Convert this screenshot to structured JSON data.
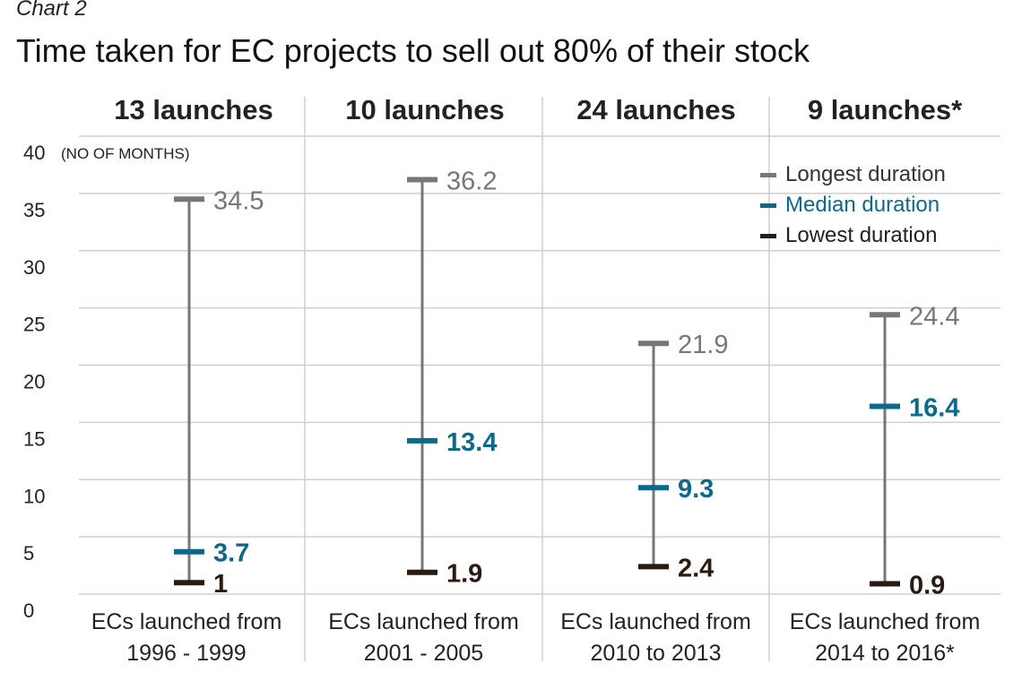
{
  "header": {
    "kicker": "Chart 2",
    "title": "Time taken for EC projects to sell out 80% of their stock"
  },
  "legend": {
    "longest_label": "Longest duration",
    "median_label": "Median duration",
    "lowest_label": "Lowest duration"
  },
  "colors": {
    "longest": "#777777",
    "median": "#0b6a8b",
    "lowest": "#2a1a14",
    "grid": "#cfcfcf",
    "divider": "#cfcfcf"
  },
  "chart_data": {
    "type": "range",
    "ylabel": "(NO OF MONTHS)",
    "ylim": [
      0,
      40
    ],
    "yticks": [
      0,
      5,
      10,
      15,
      20,
      25,
      30,
      35,
      40
    ],
    "groups": [
      {
        "header": "13 launches",
        "label_line1": "ECs launched from",
        "label_line2": "1996 - 1999",
        "longest": 34.5,
        "longest_label": "34.5",
        "median": 3.7,
        "median_label": "3.7",
        "lowest": 1,
        "lowest_label": "1"
      },
      {
        "header": "10 launches",
        "label_line1": "ECs launched from",
        "label_line2": "2001 - 2005",
        "longest": 36.2,
        "longest_label": "36.2",
        "median": 13.4,
        "median_label": "13.4",
        "lowest": 1.9,
        "lowest_label": "1.9"
      },
      {
        "header": "24 launches",
        "label_line1": "ECs launched from",
        "label_line2": "2010 to 2013",
        "longest": 21.9,
        "longest_label": "21.9",
        "median": 9.3,
        "median_label": "9.3",
        "lowest": 2.4,
        "lowest_label": "2.4"
      },
      {
        "header": "9 launches*",
        "label_line1": "ECs launched from",
        "label_line2": "2014 to 2016*",
        "longest": 24.4,
        "longest_label": "24.4",
        "median": 16.4,
        "median_label": "16.4",
        "lowest": 0.9,
        "lowest_label": "0.9"
      }
    ]
  }
}
